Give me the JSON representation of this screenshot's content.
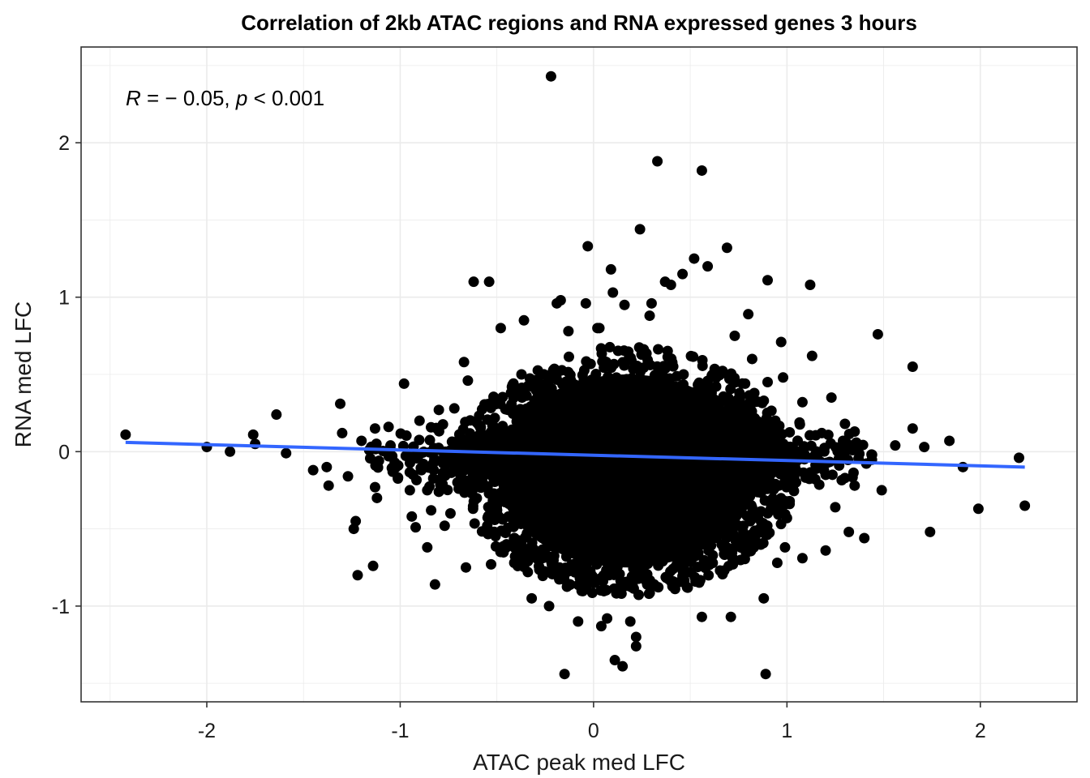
{
  "chart_data": {
    "type": "scatter",
    "title": "Correlation of 2kb ATAC regions and RNA expressed genes 3 hours",
    "xlabel": "ATAC peak med LFC",
    "ylabel": "RNA med LFC",
    "xlim": [
      -2.65,
      2.5
    ],
    "ylim": [
      -1.62,
      2.62
    ],
    "x_ticks": [
      -2,
      -1,
      0,
      1,
      2
    ],
    "x_tick_labels": [
      "-2",
      "-1",
      "0",
      "1",
      "2"
    ],
    "y_ticks": [
      -1,
      0,
      1,
      2
    ],
    "y_tick_labels": [
      "-1",
      "0",
      "1",
      "2"
    ],
    "grid": true,
    "annotation": {
      "r_symbol": "R",
      "r_value": " = − 0.05, ",
      "p_symbol": "p",
      "p_value": " < 0.001"
    },
    "regression_line": {
      "x": [
        -2.42,
        2.23
      ],
      "y": [
        0.06,
        -0.1
      ],
      "color": "#3366ff"
    },
    "point_color": "#000000",
    "dense_core": {
      "note": "thousands of overlapping points centered near (0.1, -0.05)",
      "x_range": [
        -0.5,
        0.85
      ],
      "y_range": [
        -0.75,
        0.5
      ]
    },
    "points": [
      [
        -2.42,
        0.11
      ],
      [
        -2.0,
        0.03
      ],
      [
        -1.88,
        0.0
      ],
      [
        -1.76,
        0.11
      ],
      [
        -1.75,
        0.05
      ],
      [
        -1.64,
        0.24
      ],
      [
        -1.59,
        -0.01
      ],
      [
        -1.45,
        -0.12
      ],
      [
        -1.38,
        -0.1
      ],
      [
        -1.37,
        -0.22
      ],
      [
        -1.31,
        0.31
      ],
      [
        -1.27,
        -0.16
      ],
      [
        -1.23,
        -0.45
      ],
      [
        -1.24,
        -0.5
      ],
      [
        -1.22,
        -0.8
      ],
      [
        -1.12,
        -0.3
      ],
      [
        -1.13,
        -0.23
      ],
      [
        -1.13,
        0.15
      ],
      [
        -1.06,
        0.16
      ],
      [
        -0.98,
        0.44
      ],
      [
        -1.01,
        -0.09
      ],
      [
        -0.95,
        -0.25
      ],
      [
        -0.94,
        -0.42
      ],
      [
        -0.92,
        -0.49
      ],
      [
        -0.86,
        -0.25
      ],
      [
        -0.84,
        -0.38
      ],
      [
        -0.86,
        -0.62
      ],
      [
        -0.82,
        -0.86
      ],
      [
        -0.8,
        0.27
      ],
      [
        -0.77,
        -0.48
      ],
      [
        -0.74,
        -0.4
      ],
      [
        -0.66,
        -0.75
      ],
      [
        -0.65,
        0.46
      ],
      [
        -0.63,
        -0.27
      ],
      [
        -0.59,
        -0.2
      ],
      [
        -0.72,
        0.28
      ],
      [
        -1.14,
        -0.74
      ],
      [
        -0.8,
        -0.26
      ],
      [
        -0.67,
        0.58
      ],
      [
        -0.62,
        1.1
      ],
      [
        -0.54,
        1.1
      ],
      [
        -0.53,
        -0.73
      ],
      [
        -0.48,
        0.8
      ],
      [
        -0.45,
        -0.6
      ],
      [
        -0.41,
        -0.72
      ],
      [
        -0.37,
        0.35
      ],
      [
        -0.36,
        0.85
      ],
      [
        -0.34,
        -0.78
      ],
      [
        -0.32,
        -0.95
      ],
      [
        -0.27,
        0.5
      ],
      [
        -0.22,
        2.43
      ],
      [
        -0.23,
        -1.0
      ],
      [
        -0.19,
        0.96
      ],
      [
        -0.17,
        0.98
      ],
      [
        -0.15,
        -1.44
      ],
      [
        -0.13,
        0.78
      ],
      [
        -0.1,
        0.42
      ],
      [
        -0.08,
        -1.1
      ],
      [
        -0.04,
        0.96
      ],
      [
        -0.03,
        1.33
      ],
      [
        0.02,
        0.8
      ],
      [
        0.03,
        0.8
      ],
      [
        0.04,
        -1.13
      ],
      [
        0.07,
        -1.08
      ],
      [
        0.09,
        1.18
      ],
      [
        0.1,
        1.03
      ],
      [
        0.11,
        -1.35
      ],
      [
        0.15,
        -1.39
      ],
      [
        0.16,
        0.95
      ],
      [
        0.19,
        -1.1
      ],
      [
        0.22,
        -1.2
      ],
      [
        0.22,
        -1.26
      ],
      [
        0.24,
        1.44
      ],
      [
        0.29,
        0.88
      ],
      [
        0.3,
        0.96
      ],
      [
        0.33,
        1.88
      ],
      [
        0.37,
        1.1
      ],
      [
        0.4,
        1.08
      ],
      [
        0.46,
        1.15
      ],
      [
        0.52,
        1.25
      ],
      [
        0.56,
        1.82
      ],
      [
        0.56,
        -1.07
      ],
      [
        0.59,
        1.2
      ],
      [
        0.69,
        1.32
      ],
      [
        0.73,
        0.75
      ],
      [
        0.8,
        0.89
      ],
      [
        0.82,
        0.6
      ],
      [
        0.9,
        0.45
      ],
      [
        0.89,
        -1.44
      ],
      [
        0.9,
        1.11
      ],
      [
        0.71,
        -1.07
      ],
      [
        0.88,
        -0.95
      ],
      [
        0.97,
        0.71
      ],
      [
        0.98,
        0.48
      ],
      [
        1.08,
        0.32
      ],
      [
        1.12,
        1.08
      ],
      [
        1.13,
        0.62
      ],
      [
        1.15,
        -0.05
      ],
      [
        1.2,
        -0.15
      ],
      [
        1.23,
        0.35
      ],
      [
        1.27,
        -0.09
      ],
      [
        1.3,
        0.18
      ],
      [
        1.35,
        -0.22
      ],
      [
        1.4,
        -0.56
      ],
      [
        1.44,
        -0.02
      ],
      [
        1.47,
        0.76
      ],
      [
        1.49,
        -0.25
      ],
      [
        1.56,
        0.04
      ],
      [
        1.65,
        0.55
      ],
      [
        1.65,
        0.15
      ],
      [
        1.71,
        0.03
      ],
      [
        1.74,
        -0.52
      ],
      [
        1.84,
        0.07
      ],
      [
        1.91,
        -0.1
      ],
      [
        1.99,
        -0.37
      ],
      [
        2.2,
        -0.04
      ],
      [
        2.23,
        -0.35
      ],
      [
        1.2,
        -0.64
      ],
      [
        1.08,
        -0.69
      ],
      [
        1.0,
        -0.43
      ],
      [
        0.99,
        -0.62
      ],
      [
        0.95,
        -0.72
      ],
      [
        1.32,
        -0.52
      ],
      [
        1.25,
        -0.36
      ],
      [
        1.35,
        0.13
      ],
      [
        1.18,
        0.12
      ],
      [
        1.29,
        0.07
      ],
      [
        -0.9,
        0.2
      ],
      [
        -0.88,
        -0.08
      ],
      [
        -1.05,
        0.04
      ],
      [
        -1.2,
        0.07
      ],
      [
        -1.3,
        0.12
      ],
      [
        -1.16,
        0.01
      ]
    ]
  }
}
